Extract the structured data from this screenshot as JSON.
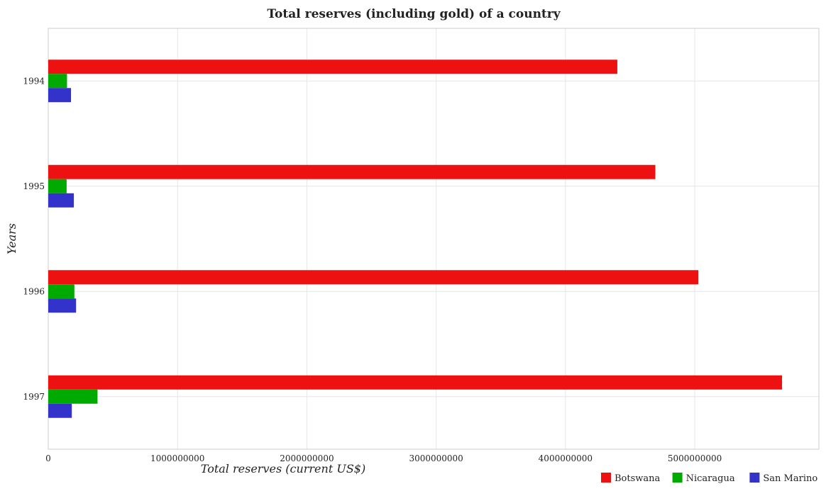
{
  "chart_data": {
    "type": "bar",
    "orientation": "horizontal",
    "title": "Total reserves (including gold) of a country",
    "xlabel": "Total reserves (current US$)",
    "ylabel": "Years",
    "categories": [
      "1994",
      "1995",
      "1996",
      "1997"
    ],
    "series": [
      {
        "name": "Botswana",
        "color": "#ee1111",
        "values": [
          4401000000,
          4695000000,
          5028000000,
          5675000000
        ]
      },
      {
        "name": "Nicaragua",
        "color": "#00aa00",
        "values": [
          145000000,
          142000000,
          202000000,
          381000000
        ]
      },
      {
        "name": "San Marino",
        "color": "#3333cc",
        "values": [
          176000000,
          198000000,
          215000000,
          182000000
        ]
      }
    ],
    "xlim": [
      0,
      5960000000
    ],
    "xticks": [
      0,
      1000000000,
      2000000000,
      3000000000,
      4000000000,
      5000000000
    ],
    "xtick_labels": [
      "0",
      "1000000000",
      "2000000000",
      "3000000000",
      "4000000000",
      "5000000000"
    ],
    "grid": true,
    "legend_position": "bottom-right"
  }
}
